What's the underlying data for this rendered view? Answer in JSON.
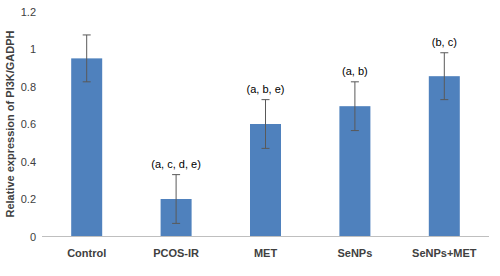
{
  "chart_data": {
    "type": "bar",
    "y_label": "Relative expression of PI3K/GADPH",
    "categories": [
      "Control",
      "PCOS-IR",
      "MET",
      "SeNPs",
      "SeNPs+MET"
    ],
    "values": [
      0.95,
      0.2,
      0.6,
      0.695,
      0.855
    ],
    "errors": [
      0.125,
      0.13,
      0.13,
      0.13,
      0.125
    ],
    "annotations": [
      null,
      "(a, c, d, e)",
      "(a, b, e)",
      "(a, b)",
      "(b, c)"
    ],
    "color": "#4f81bd",
    "ylim": [
      0,
      1.2
    ],
    "yticks": [
      0,
      0.2,
      0.4,
      0.6,
      0.8,
      1,
      1.2
    ],
    "grid": false
  }
}
